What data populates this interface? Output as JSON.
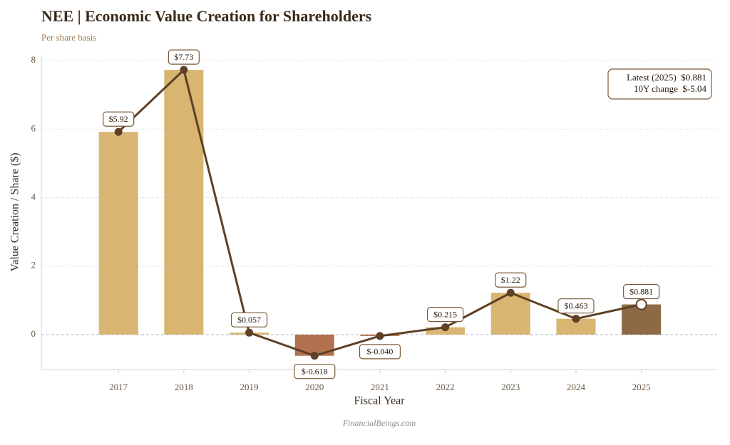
{
  "chart_data": {
    "type": "bar",
    "title": "NEE | Economic Value Creation for Shareholders",
    "subtitle": "Per share basis",
    "x_label": "Fiscal Year",
    "y_label": "Value Creation / Share ($)",
    "source": "FinancialBeings.com",
    "x": [
      2017,
      2018,
      2019,
      2020,
      2021,
      2022,
      2023,
      2024,
      2025
    ],
    "values": [
      5.92,
      7.73,
      0.057,
      -0.618,
      -0.04,
      0.215,
      1.22,
      0.463,
      0.881
    ],
    "value_labels": [
      "$5.92",
      "$7.73",
      "$0.057",
      "$-0.618",
      "$-0.040",
      "$0.215",
      "$1.22",
      "$0.463",
      "$0.881"
    ],
    "colors": [
      "#d8b672",
      "#d8b672",
      "#d8b672",
      "#b3714f",
      "#b3714f",
      "#d8b672",
      "#d8b672",
      "#d8b672",
      "#8c6a45"
    ],
    "line_color": "#5e4026",
    "xlim": [
      2015.82,
      2026.16
    ],
    "xticks": [
      2017,
      2018,
      2019,
      2020,
      2021,
      2022,
      2023,
      2024,
      2025
    ],
    "ylim": [
      -1.02,
      8.17
    ],
    "yticks": [
      0,
      2,
      4,
      6,
      8
    ],
    "grid": true,
    "annotation": [
      "Latest (2025)  $0.881",
      "10Y change  $-5.04"
    ]
  }
}
